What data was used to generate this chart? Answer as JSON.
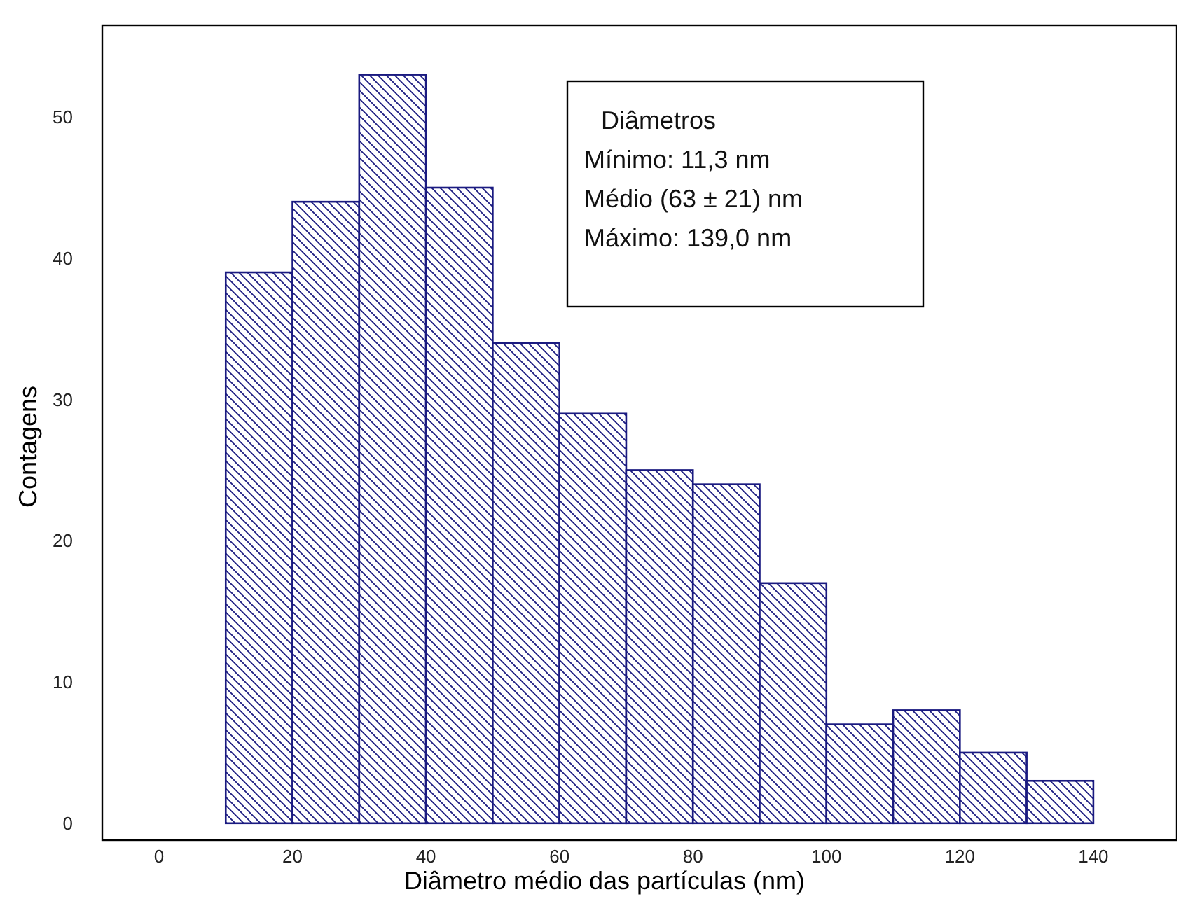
{
  "chart_data": {
    "type": "histogram",
    "xlabel": "Diâmetro médio das partículas (nm)",
    "ylabel": "Contagens",
    "bins": [
      10,
      20,
      30,
      40,
      50,
      60,
      70,
      80,
      90,
      100,
      110,
      120,
      130,
      140
    ],
    "values": [
      39,
      44,
      53,
      45,
      34,
      29,
      25,
      24,
      17,
      7,
      8,
      5,
      3
    ],
    "color": "#1a1a80",
    "xlim": [
      -8.5,
      152.5
    ],
    "ylim": [
      -1.2,
      56.5
    ],
    "xticks": [
      0,
      20,
      40,
      60,
      80,
      100,
      120,
      140
    ],
    "yticks": [
      0,
      10,
      20,
      30,
      40,
      50
    ],
    "grid": false,
    "annotations": [
      "Diâmetros",
      "Mínimo: 11,3 nm",
      "Médio (63 ± 21) nm",
      "Máximo: 139,0 nm"
    ]
  }
}
